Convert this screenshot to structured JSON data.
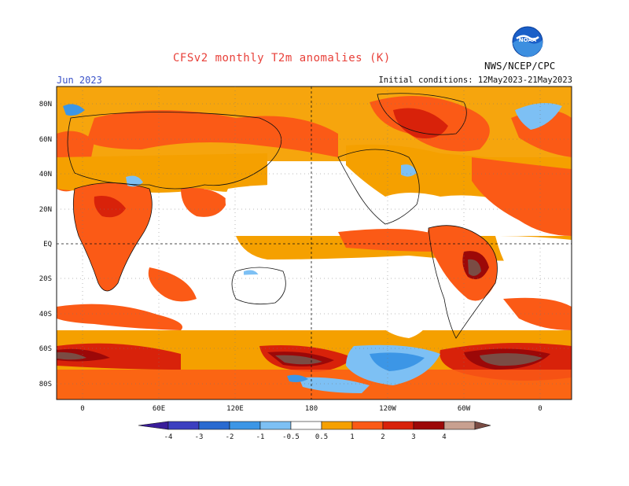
{
  "header": {
    "title": "CFSv2 monthly T2m anomalies (K)",
    "month": "Jun 2023",
    "initial_conditions": "Initial conditions: 12May2023-21May2023",
    "agency": "NWS/NCEP/CPC",
    "logo_text": "NOAA"
  },
  "axes": {
    "lat_labels": [
      "80N",
      "60N",
      "40N",
      "20N",
      "EQ",
      "20S",
      "40S",
      "60S",
      "80S"
    ],
    "lon_labels": [
      "0",
      "60E",
      "120E",
      "180",
      "120W",
      "60W",
      "0"
    ]
  },
  "colorbar": {
    "labels": [
      "-4",
      "-3",
      "-2",
      "-1",
      "-0.5",
      "0.5",
      "1",
      "2",
      "3",
      "4"
    ],
    "colors": [
      "#3a1d9a",
      "#3c3fc0",
      "#2a6ad0",
      "#3c96e6",
      "#7dc0f4",
      "#ffffff",
      "#f5a000",
      "#fb5a16",
      "#d8220a",
      "#9c0808",
      "#c8a090",
      "#7a4c44"
    ]
  },
  "map": {
    "fill_colors": {
      "weak_warm": "#f5a000",
      "moderate_warm": "#fb5a16",
      "strong_warm": "#d8220a",
      "very_strong_warm": "#9c0808",
      "extreme_warm": "#c8a090",
      "max_warm": "#7a4c44",
      "weak_cool": "#7dc0f4",
      "moderate_cool": "#3c96e6",
      "strong_cool": "#2a6ad0"
    }
  }
}
